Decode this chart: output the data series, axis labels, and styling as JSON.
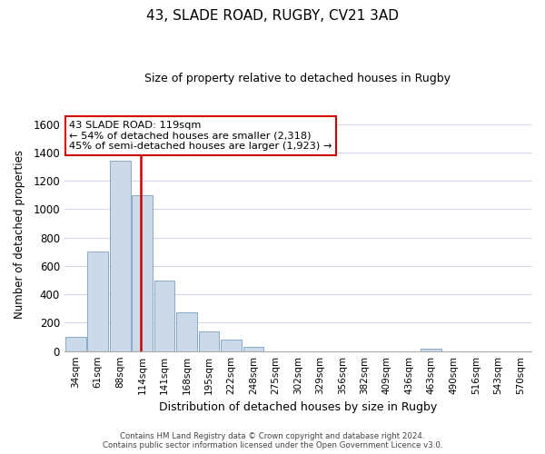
{
  "title1": "43, SLADE ROAD, RUGBY, CV21 3AD",
  "title2": "Size of property relative to detached houses in Rugby",
  "xlabel": "Distribution of detached houses by size in Rugby",
  "ylabel": "Number of detached properties",
  "bar_labels": [
    "34sqm",
    "61sqm",
    "88sqm",
    "114sqm",
    "141sqm",
    "168sqm",
    "195sqm",
    "222sqm",
    "248sqm",
    "275sqm",
    "302sqm",
    "329sqm",
    "356sqm",
    "382sqm",
    "409sqm",
    "436sqm",
    "463sqm",
    "490sqm",
    "516sqm",
    "543sqm",
    "570sqm"
  ],
  "bar_values": [
    100,
    700,
    1340,
    1100,
    500,
    270,
    140,
    80,
    30,
    0,
    0,
    0,
    0,
    0,
    0,
    0,
    20,
    0,
    0,
    0,
    0
  ],
  "bar_color": "#ccd9e8",
  "bar_edge_color": "#7aa0c0",
  "vline_x_index": 3,
  "vline_color": "#cc0000",
  "ylim": [
    0,
    1650
  ],
  "yticks": [
    0,
    200,
    400,
    600,
    800,
    1000,
    1200,
    1400,
    1600
  ],
  "annotation_title": "43 SLADE ROAD: 119sqm",
  "annotation_line1": "← 54% of detached houses are smaller (2,318)",
  "annotation_line2": "45% of semi-detached houses are larger (1,923) →",
  "annotation_box_color": "#ffffff",
  "annotation_box_edge": "#cc0000",
  "footer1": "Contains HM Land Registry data © Crown copyright and database right 2024.",
  "footer2": "Contains public sector information licensed under the Open Government Licence v3.0.",
  "bg_color": "#ffffff",
  "grid_color": "#d0d8e8"
}
